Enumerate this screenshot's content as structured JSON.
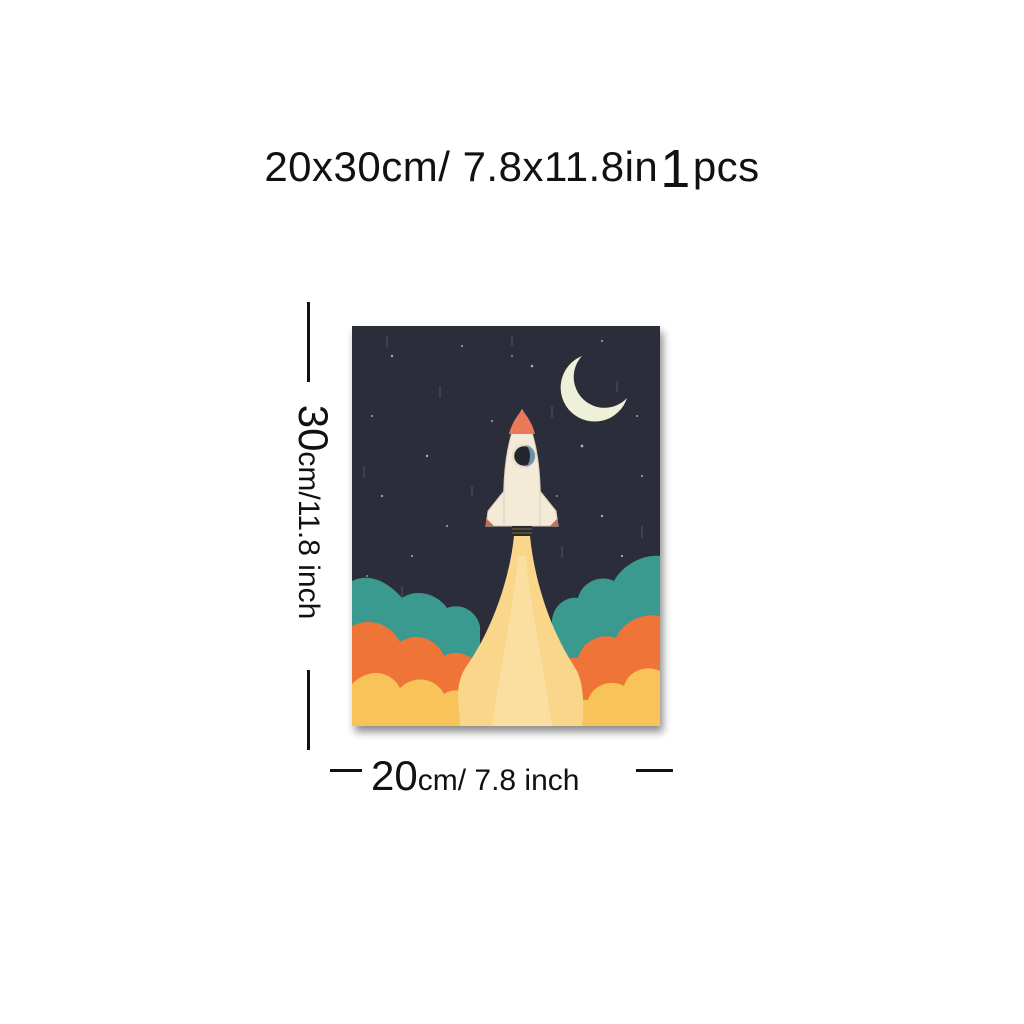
{
  "title": {
    "size": "20x30cm/ 7.8x11.8in",
    "quantity_number": "1",
    "quantity_unit": "pcs"
  },
  "height_label": {
    "number": "30",
    "unit": "cm/11.8 inch"
  },
  "width_label": {
    "number": "20",
    "unit": "cm/ 7.8 inch"
  },
  "poster": {
    "subject": "rocket launching toward crescent moon",
    "colors": {
      "sky": "#2b2d3a",
      "moon": "#eef0d8",
      "rocket": "#f3ead8",
      "teal_cloud": "#3a9a8f",
      "orange_cloud": "#ee7437",
      "yellow_cloud": "#f8c45a",
      "flame": "#f9d68a"
    },
    "icons": [
      "moon-icon",
      "rocket-icon"
    ]
  }
}
